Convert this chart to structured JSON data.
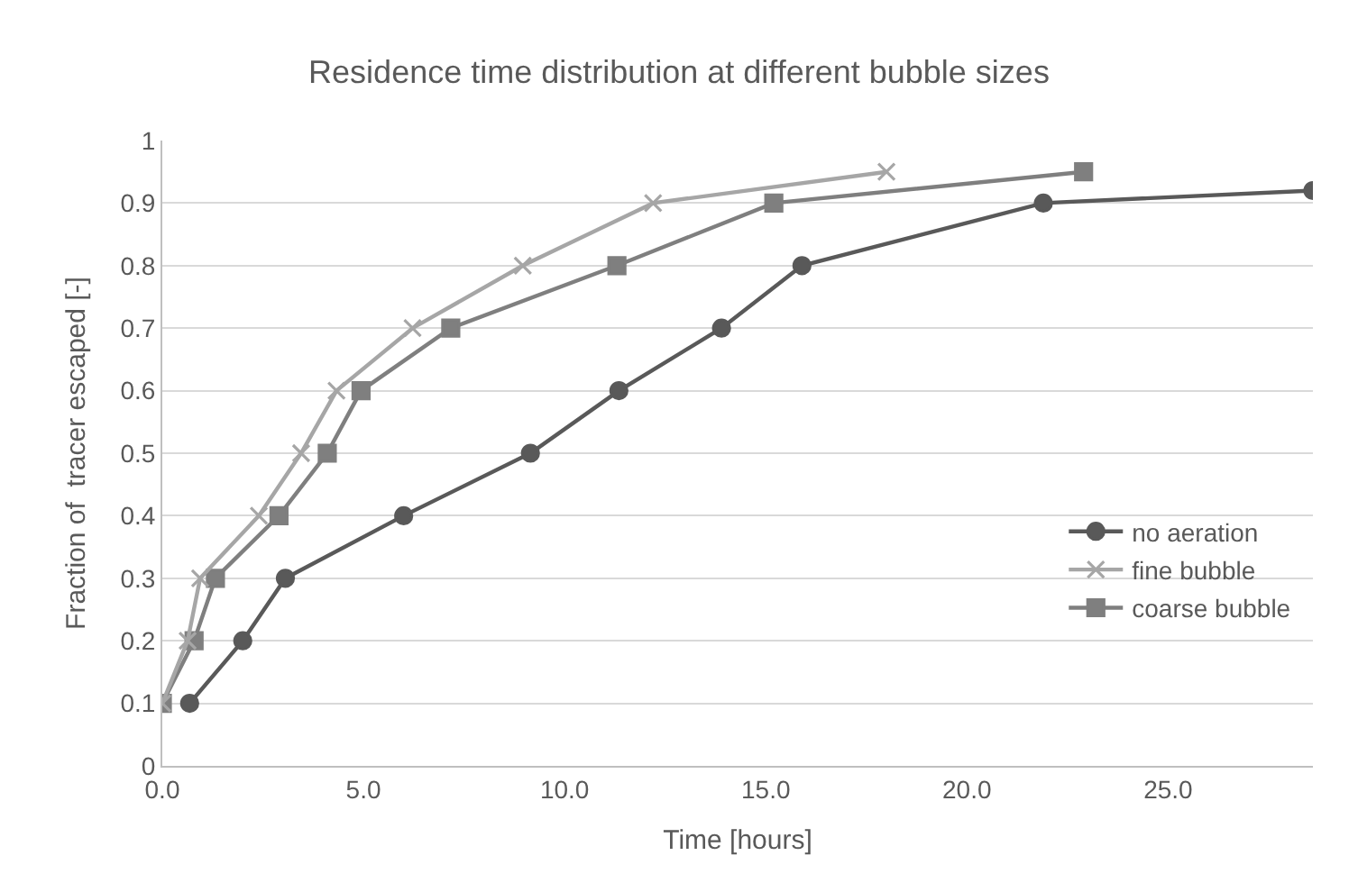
{
  "chart_data": {
    "type": "line",
    "title": "Residence time distribution at different bubble sizes",
    "xlabel": "Time [hours]",
    "ylabel": "Fraction of  tracer escaped [-]",
    "xlim": [
      0,
      28.6
    ],
    "xticks": [
      {
        "value": 0,
        "label": "0.0"
      },
      {
        "value": 5,
        "label": "5.0"
      },
      {
        "value": 10,
        "label": "10.0"
      },
      {
        "value": 15,
        "label": "15.0"
      },
      {
        "value": 20,
        "label": "20.0"
      },
      {
        "value": 25,
        "label": "25.0"
      }
    ],
    "ylim": [
      0,
      1
    ],
    "yticks": [
      0,
      0.1,
      0.2,
      0.3,
      0.4,
      0.5,
      0.6,
      0.7,
      0.8,
      0.9,
      1
    ],
    "grid": "y",
    "legend": "right",
    "series": [
      {
        "name": "no aeration",
        "color": "#595959",
        "marker": "circle",
        "x": [
          0.68,
          2.0,
          3.06,
          6.0,
          9.15,
          11.35,
          13.9,
          15.9,
          21.9,
          28.6
        ],
        "values": [
          0.1,
          0.2,
          0.3,
          0.4,
          0.5,
          0.6,
          0.7,
          0.8,
          0.9,
          0.92
        ]
      },
      {
        "name": "fine bubble",
        "color": "#a6a6a6",
        "marker": "cross",
        "x": [
          0,
          0.63,
          0.94,
          2.4,
          3.45,
          4.33,
          6.22,
          8.96,
          12.2,
          18.0
        ],
        "values": [
          0.1,
          0.2,
          0.3,
          0.4,
          0.5,
          0.6,
          0.7,
          0.8,
          0.9,
          0.95
        ]
      },
      {
        "name": "coarse bubble",
        "color": "#7f7f7f",
        "marker": "square",
        "x": [
          0,
          0.79,
          1.32,
          2.9,
          4.1,
          4.94,
          7.17,
          11.3,
          15.2,
          22.9
        ],
        "values": [
          0.1,
          0.2,
          0.3,
          0.4,
          0.5,
          0.6,
          0.7,
          0.8,
          0.9,
          0.95
        ]
      }
    ]
  }
}
